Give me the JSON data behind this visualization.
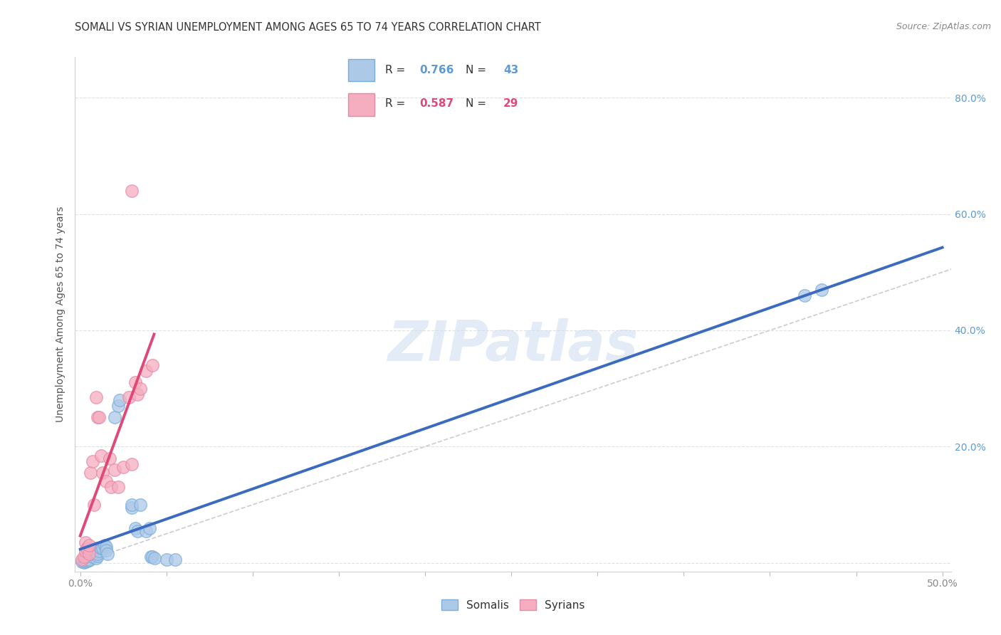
{
  "title": "SOMALI VS SYRIAN UNEMPLOYMENT AMONG AGES 65 TO 74 YEARS CORRELATION CHART",
  "source": "Source: ZipAtlas.com",
  "ylabel": "Unemployment Among Ages 65 to 74 years",
  "xlim": [
    -0.003,
    0.505
  ],
  "ylim": [
    -0.015,
    0.87
  ],
  "xticks": [
    0.0,
    0.05,
    0.1,
    0.15,
    0.2,
    0.25,
    0.3,
    0.35,
    0.4,
    0.45,
    0.5
  ],
  "yticks": [
    0.0,
    0.2,
    0.4,
    0.6,
    0.8
  ],
  "somali_color": "#adc9e8",
  "syrian_color": "#f5adc0",
  "somali_edge": "#7aaddb",
  "syrian_edge": "#e888a8",
  "somali_R": 0.766,
  "somali_N": 43,
  "syrian_R": 0.587,
  "syrian_N": 29,
  "somali_line_color": "#3a6bbf",
  "syrian_line_color": "#e04878",
  "ref_line_color": "#cccccc",
  "background_color": "#ffffff",
  "grid_color": "#e0e0e0",
  "title_color": "#333333",
  "source_color": "#888888",
  "ylabel_color": "#555555",
  "ytick_color": "#5b9bd5",
  "xtick_color": "#888888",
  "legend_r_color_somali": "#5b9bd5",
  "legend_r_color_syrian": "#e04878",
  "somali_x": [
    0.001,
    0.002,
    0.002,
    0.003,
    0.003,
    0.004,
    0.004,
    0.005,
    0.005,
    0.006,
    0.006,
    0.007,
    0.007,
    0.008,
    0.008,
    0.009,
    0.009,
    0.01,
    0.01,
    0.011,
    0.012,
    0.013,
    0.014,
    0.015,
    0.015,
    0.016,
    0.02,
    0.022,
    0.023,
    0.03,
    0.03,
    0.032,
    0.033,
    0.035,
    0.038,
    0.04,
    0.041,
    0.042,
    0.043,
    0.05,
    0.055,
    0.42,
    0.43
  ],
  "somali_y": [
    0.002,
    0.001,
    0.004,
    0.002,
    0.005,
    0.003,
    0.01,
    0.004,
    0.005,
    0.015,
    0.018,
    0.01,
    0.015,
    0.02,
    0.022,
    0.025,
    0.008,
    0.012,
    0.015,
    0.02,
    0.025,
    0.025,
    0.03,
    0.028,
    0.022,
    0.015,
    0.25,
    0.27,
    0.28,
    0.095,
    0.1,
    0.06,
    0.055,
    0.1,
    0.055,
    0.06,
    0.01,
    0.01,
    0.008,
    0.005,
    0.005,
    0.46,
    0.47
  ],
  "syrian_x": [
    0.001,
    0.002,
    0.003,
    0.003,
    0.004,
    0.005,
    0.005,
    0.006,
    0.007,
    0.008,
    0.009,
    0.01,
    0.011,
    0.012,
    0.013,
    0.015,
    0.017,
    0.018,
    0.02,
    0.022,
    0.025,
    0.028,
    0.03,
    0.03,
    0.032,
    0.033,
    0.035,
    0.038,
    0.042
  ],
  "syrian_y": [
    0.005,
    0.01,
    0.02,
    0.035,
    0.025,
    0.015,
    0.03,
    0.155,
    0.175,
    0.1,
    0.285,
    0.25,
    0.25,
    0.185,
    0.155,
    0.14,
    0.18,
    0.13,
    0.16,
    0.13,
    0.165,
    0.285,
    0.17,
    0.64,
    0.31,
    0.29,
    0.3,
    0.33,
    0.34
  ]
}
